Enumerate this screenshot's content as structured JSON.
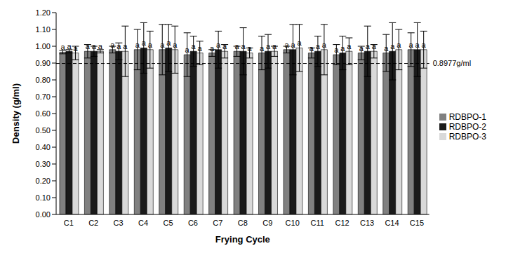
{
  "chart_data": {
    "type": "bar",
    "x_label": "Frying Cycle",
    "y_label": "Density (g/ml)",
    "categories": [
      "C1",
      "C2",
      "C3",
      "C4",
      "C5",
      "C6",
      "C7",
      "C8",
      "C9",
      "C10",
      "C11",
      "C12",
      "C13",
      "C14",
      "C15"
    ],
    "series": [
      {
        "name": "RDBPO-1",
        "color": "#808080",
        "values": [
          0.965,
          0.97,
          0.98,
          0.98,
          0.98,
          0.95,
          0.96,
          0.97,
          0.96,
          0.98,
          0.96,
          0.95,
          0.96,
          0.96,
          0.98
        ],
        "errors": [
          0.01,
          0.04,
          0.02,
          0.12,
          0.15,
          0.13,
          0.02,
          0.03,
          0.1,
          0.02,
          0.03,
          0.06,
          0.04,
          0.11,
          0.1
        ],
        "letters": [
          "a",
          "a",
          "a",
          "a",
          "a",
          "a",
          "a",
          "a",
          "a",
          "a",
          "a",
          "a",
          "a",
          "a",
          "a"
        ]
      },
      {
        "name": "RDBPO-2",
        "color": "#1a1a1a",
        "values": [
          0.97,
          0.97,
          0.97,
          0.99,
          0.99,
          0.97,
          0.98,
          0.97,
          0.97,
          0.98,
          0.97,
          0.96,
          0.97,
          0.97,
          0.98
        ],
        "errors": [
          0.01,
          0.03,
          0.05,
          0.15,
          0.14,
          0.09,
          0.11,
          0.14,
          0.1,
          0.15,
          0.09,
          0.1,
          0.15,
          0.17,
          0.16
        ],
        "letters": [
          "a",
          "a",
          "a",
          "a",
          "a",
          "a",
          "a",
          "a",
          "a",
          "a",
          "a",
          "a",
          "a",
          "a",
          "a"
        ]
      },
      {
        "name": "RDBPO-3",
        "color": "#d9d9d9",
        "values": [
          0.96,
          0.97,
          0.97,
          0.98,
          0.98,
          0.96,
          0.97,
          0.96,
          0.97,
          0.99,
          0.98,
          0.97,
          0.97,
          0.98,
          0.98
        ],
        "errors": [
          0.04,
          0.01,
          0.15,
          0.11,
          0.14,
          0.07,
          0.04,
          0.03,
          0.03,
          0.14,
          0.15,
          0.08,
          0.04,
          0.12,
          0.11
        ],
        "letters": [
          "a",
          "a",
          "a",
          "a",
          "a",
          "a",
          "a",
          "a",
          "a",
          "a",
          "a",
          "a",
          "a",
          "a",
          "a"
        ]
      }
    ],
    "reference_line": {
      "value": 0.8977,
      "label": "0.8977g/ml",
      "line_style": "dashed"
    },
    "ylim": [
      0,
      1.2
    ],
    "yticks": [
      {
        "value": 0,
        "label": "0.00"
      },
      {
        "value": 0.1,
        "label": "0.10"
      },
      {
        "value": 0.2,
        "label": "0.20"
      },
      {
        "value": 0.3,
        "label": "0.30"
      },
      {
        "value": 0.4,
        "label": "0.40"
      },
      {
        "value": 0.5,
        "label": "0.50"
      },
      {
        "value": 0.6,
        "label": "0.60"
      },
      {
        "value": 0.7,
        "label": "0.70"
      },
      {
        "value": 0.8,
        "label": "0.80"
      },
      {
        "value": 0.9,
        "label": "0.90"
      },
      {
        "value": 1.0,
        "label": "1.00"
      },
      {
        "value": 1.1,
        "label": "1.10"
      },
      {
        "value": 1.2,
        "label": "1.20"
      }
    ],
    "legend": "right",
    "grid": false
  }
}
